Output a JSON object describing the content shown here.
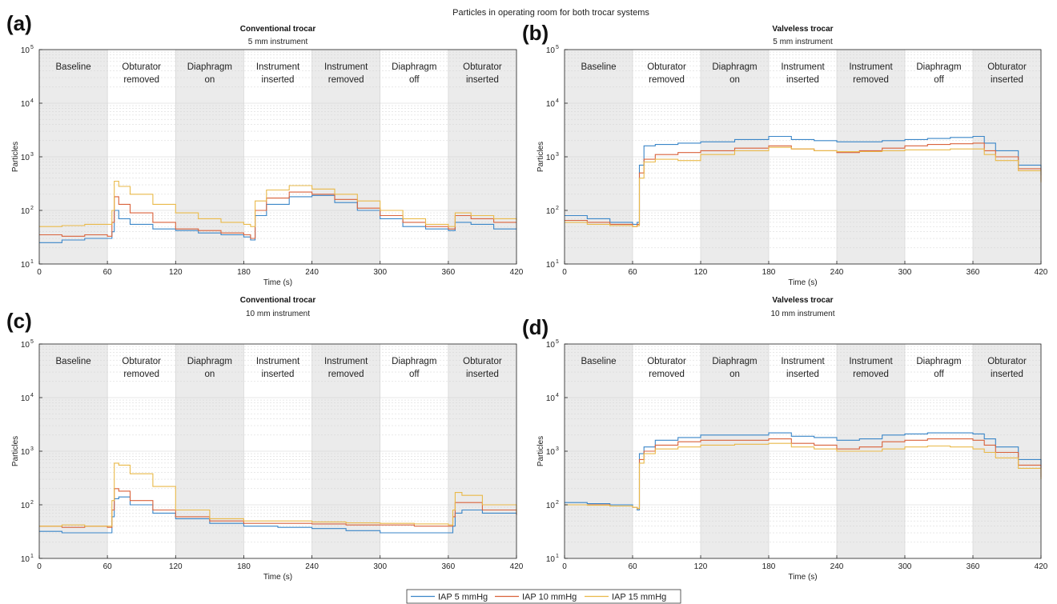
{
  "figure": {
    "suptitle": "Particles in operating room for both trocar systems"
  },
  "legend": {
    "entries": [
      {
        "label": "IAP 5 mmHg",
        "color": "#3a86c8"
      },
      {
        "label": "IAP 10 mmHg",
        "color": "#d9623b"
      },
      {
        "label": "IAP 15 mmHg",
        "color": "#e9b949"
      }
    ]
  },
  "chart_data": [
    {
      "panel": "(a)",
      "type": "line",
      "title": "Conventional trocar",
      "subtitle": "5 mm instrument",
      "xlabel": "Time (s)",
      "ylabel": "Particles",
      "xlim": [
        0,
        420
      ],
      "ylim": [
        10,
        100000
      ],
      "yscale": "log",
      "grid": true,
      "xticks": [
        0,
        60,
        120,
        180,
        240,
        300,
        360,
        420
      ],
      "yticks": [
        "10",
        "10",
        "10",
        "10",
        "10"
      ],
      "ytick_exponents": [
        "1",
        "2",
        "3",
        "4",
        "5"
      ],
      "phases": [
        {
          "line1": "Baseline",
          "line2": "",
          "shaded": true
        },
        {
          "line1": "Obturator",
          "line2": "removed",
          "shaded": false
        },
        {
          "line1": "Diaphragm",
          "line2": "on",
          "shaded": true
        },
        {
          "line1": "Instrument",
          "line2": "inserted",
          "shaded": false
        },
        {
          "line1": "Instrument",
          "line2": "removed",
          "shaded": true
        },
        {
          "line1": "Diaphragm",
          "line2": "off",
          "shaded": false
        },
        {
          "line1": "Obturator",
          "line2": "inserted",
          "shaded": true
        }
      ],
      "series": [
        {
          "name": "IAP 5 mmHg",
          "color": "#3a86c8",
          "x": [
            0,
            20,
            40,
            60,
            64,
            66,
            70,
            80,
            100,
            120,
            140,
            160,
            180,
            186,
            190,
            200,
            220,
            240,
            260,
            280,
            300,
            320,
            340,
            360,
            366,
            380,
            400,
            420
          ],
          "y": [
            25,
            28,
            30,
            30,
            40,
            100,
            70,
            55,
            45,
            42,
            38,
            35,
            32,
            28,
            80,
            130,
            180,
            190,
            140,
            100,
            70,
            50,
            45,
            42,
            60,
            55,
            45,
            45
          ]
        },
        {
          "name": "IAP 10 mmHg",
          "color": "#d9623b",
          "x": [
            0,
            20,
            40,
            60,
            64,
            66,
            70,
            80,
            100,
            120,
            140,
            160,
            180,
            186,
            190,
            200,
            220,
            240,
            260,
            280,
            300,
            320,
            340,
            360,
            366,
            380,
            400,
            420
          ],
          "y": [
            35,
            33,
            35,
            33,
            60,
            180,
            130,
            90,
            60,
            45,
            42,
            38,
            35,
            30,
            100,
            170,
            220,
            200,
            160,
            110,
            80,
            60,
            50,
            45,
            80,
            70,
            60,
            60
          ]
        },
        {
          "name": "IAP 15 mmHg",
          "color": "#e9b949",
          "x": [
            0,
            20,
            40,
            60,
            64,
            66,
            70,
            80,
            100,
            120,
            140,
            160,
            180,
            186,
            190,
            200,
            220,
            240,
            260,
            280,
            300,
            320,
            340,
            360,
            366,
            380,
            400,
            420
          ],
          "y": [
            50,
            52,
            55,
            55,
            100,
            350,
            280,
            200,
            130,
            90,
            70,
            60,
            55,
            50,
            150,
            240,
            290,
            250,
            200,
            150,
            100,
            70,
            55,
            50,
            90,
            80,
            70,
            65
          ]
        }
      ]
    },
    {
      "panel": "(b)",
      "type": "line",
      "title": "Valveless trocar",
      "subtitle": "5 mm instrument",
      "xlabel": "Time (s)",
      "ylabel": "Particles",
      "xlim": [
        0,
        420
      ],
      "ylim": [
        10,
        100000
      ],
      "yscale": "log",
      "grid": true,
      "xticks": [
        0,
        60,
        120,
        180,
        240,
        300,
        360,
        420
      ],
      "yticks": [
        "10",
        "10",
        "10",
        "10",
        "10"
      ],
      "ytick_exponents": [
        "1",
        "2",
        "3",
        "4",
        "5"
      ],
      "phases": [
        {
          "line1": "Baseline",
          "line2": "",
          "shaded": true
        },
        {
          "line1": "Obturator",
          "line2": "removed",
          "shaded": false
        },
        {
          "line1": "Diaphragm",
          "line2": "on",
          "shaded": true
        },
        {
          "line1": "Instrument",
          "line2": "inserted",
          "shaded": false
        },
        {
          "line1": "Instrument",
          "line2": "removed",
          "shaded": true
        },
        {
          "line1": "Diaphragm",
          "line2": "off",
          "shaded": false
        },
        {
          "line1": "Obturator",
          "line2": "inserted",
          "shaded": true
        }
      ],
      "series": [
        {
          "name": "IAP 5 mmHg",
          "color": "#3a86c8",
          "x": [
            0,
            20,
            40,
            60,
            64,
            66,
            70,
            80,
            100,
            120,
            150,
            180,
            200,
            220,
            240,
            260,
            280,
            300,
            320,
            340,
            360,
            370,
            380,
            400,
            420
          ],
          "y": [
            80,
            70,
            60,
            55,
            60,
            700,
            1600,
            1700,
            1800,
            1900,
            2100,
            2400,
            2100,
            2000,
            1900,
            1900,
            2000,
            2100,
            2200,
            2300,
            2400,
            1800,
            1300,
            700,
            450
          ]
        },
        {
          "name": "IAP 10 mmHg",
          "color": "#d9623b",
          "x": [
            0,
            20,
            40,
            60,
            64,
            66,
            70,
            80,
            100,
            120,
            150,
            180,
            200,
            220,
            240,
            260,
            280,
            300,
            320,
            340,
            360,
            370,
            380,
            400,
            420
          ],
          "y": [
            65,
            60,
            55,
            50,
            55,
            500,
            900,
            1100,
            1200,
            1300,
            1450,
            1600,
            1400,
            1300,
            1200,
            1300,
            1450,
            1600,
            1700,
            1750,
            1800,
            1300,
            1000,
            600,
            350
          ]
        },
        {
          "name": "IAP 15 mmHg",
          "color": "#e9b949",
          "x": [
            0,
            20,
            40,
            60,
            64,
            66,
            70,
            80,
            100,
            120,
            150,
            180,
            200,
            220,
            240,
            260,
            280,
            300,
            320,
            340,
            360,
            370,
            380,
            400,
            420
          ],
          "y": [
            60,
            55,
            52,
            50,
            52,
            400,
            800,
            900,
            850,
            1100,
            1300,
            1500,
            1400,
            1300,
            1250,
            1250,
            1300,
            1350,
            1350,
            1400,
            1400,
            1100,
            850,
            550,
            330
          ]
        }
      ]
    },
    {
      "panel": "(c)",
      "type": "line",
      "title": "Conventional trocar",
      "subtitle": "10 mm instrument",
      "xlabel": "Time (s)",
      "ylabel": "Particles",
      "xlim": [
        0,
        420
      ],
      "ylim": [
        10,
        100000
      ],
      "yscale": "log",
      "grid": true,
      "xticks": [
        0,
        60,
        120,
        180,
        240,
        300,
        360,
        420
      ],
      "yticks": [
        "10",
        "10",
        "10",
        "10",
        "10"
      ],
      "ytick_exponents": [
        "1",
        "2",
        "3",
        "4",
        "5"
      ],
      "phases": [
        {
          "line1": "Baseline",
          "line2": "",
          "shaded": true
        },
        {
          "line1": "Obturator",
          "line2": "removed",
          "shaded": false
        },
        {
          "line1": "Diaphragm",
          "line2": "on",
          "shaded": true
        },
        {
          "line1": "Instrument",
          "line2": "inserted",
          "shaded": false
        },
        {
          "line1": "Instrument",
          "line2": "removed",
          "shaded": true
        },
        {
          "line1": "Diaphragm",
          "line2": "off",
          "shaded": false
        },
        {
          "line1": "Obturator",
          "line2": "inserted",
          "shaded": true
        }
      ],
      "series": [
        {
          "name": "IAP 5 mmHg",
          "color": "#3a86c8",
          "x": [
            0,
            20,
            40,
            60,
            64,
            66,
            70,
            80,
            100,
            120,
            150,
            180,
            210,
            240,
            270,
            300,
            330,
            360,
            364,
            366,
            372,
            390,
            420
          ],
          "y": [
            32,
            30,
            30,
            30,
            60,
            130,
            140,
            100,
            70,
            55,
            45,
            40,
            38,
            36,
            33,
            30,
            30,
            30,
            40,
            70,
            80,
            70,
            65
          ]
        },
        {
          "name": "IAP 10 mmHg",
          "color": "#d9623b",
          "x": [
            0,
            20,
            40,
            60,
            64,
            66,
            70,
            80,
            100,
            120,
            150,
            180,
            210,
            240,
            270,
            300,
            330,
            360,
            364,
            366,
            372,
            390,
            420
          ],
          "y": [
            40,
            38,
            40,
            38,
            80,
            200,
            180,
            120,
            80,
            60,
            50,
            45,
            45,
            44,
            42,
            42,
            40,
            40,
            60,
            110,
            110,
            80,
            65
          ]
        },
        {
          "name": "IAP 15 mmHg",
          "color": "#e9b949",
          "x": [
            0,
            20,
            40,
            60,
            64,
            66,
            70,
            80,
            100,
            120,
            150,
            180,
            210,
            240,
            270,
            300,
            330,
            360,
            364,
            366,
            372,
            390,
            420
          ],
          "y": [
            40,
            42,
            40,
            40,
            120,
            600,
            550,
            380,
            220,
            80,
            55,
            50,
            50,
            48,
            46,
            45,
            44,
            42,
            80,
            170,
            150,
            100,
            70
          ]
        }
      ]
    },
    {
      "panel": "(d)",
      "type": "line",
      "title": "Valveless trocar",
      "subtitle": "10 mm instrument",
      "xlabel": "Time (s)",
      "ylabel": "Particles",
      "xlim": [
        0,
        420
      ],
      "ylim": [
        10,
        100000
      ],
      "yscale": "log",
      "grid": true,
      "xticks": [
        0,
        60,
        120,
        180,
        240,
        300,
        360,
        420
      ],
      "yticks": [
        "10",
        "10",
        "10",
        "10",
        "10"
      ],
      "ytick_exponents": [
        "1",
        "2",
        "3",
        "4",
        "5"
      ],
      "phases": [
        {
          "line1": "Baseline",
          "line2": "",
          "shaded": true
        },
        {
          "line1": "Obturator",
          "line2": "removed",
          "shaded": false
        },
        {
          "line1": "Diaphragm",
          "line2": "on",
          "shaded": true
        },
        {
          "line1": "Instrument",
          "line2": "inserted",
          "shaded": false
        },
        {
          "line1": "Instrument",
          "line2": "removed",
          "shaded": true
        },
        {
          "line1": "Diaphragm",
          "line2": "off",
          "shaded": false
        },
        {
          "line1": "Obturator",
          "line2": "inserted",
          "shaded": true
        }
      ],
      "series": [
        {
          "name": "IAP 5 mmHg",
          "color": "#3a86c8",
          "x": [
            0,
            20,
            40,
            60,
            64,
            66,
            70,
            80,
            100,
            120,
            150,
            180,
            200,
            220,
            240,
            260,
            280,
            300,
            320,
            340,
            360,
            370,
            380,
            400,
            420
          ],
          "y": [
            110,
            105,
            100,
            90,
            80,
            900,
            1200,
            1600,
            1800,
            2000,
            2000,
            2200,
            1900,
            1800,
            1600,
            1700,
            2000,
            2100,
            2200,
            2200,
            2100,
            1700,
            1200,
            700,
            480
          ]
        },
        {
          "name": "IAP 10 mmHg",
          "color": "#d9623b",
          "x": [
            0,
            20,
            40,
            60,
            64,
            66,
            70,
            80,
            100,
            120,
            150,
            180,
            200,
            220,
            240,
            260,
            280,
            300,
            320,
            340,
            360,
            370,
            380,
            400,
            420
          ],
          "y": [
            100,
            100,
            95,
            90,
            85,
            700,
            1000,
            1300,
            1500,
            1600,
            1600,
            1700,
            1400,
            1300,
            1100,
            1200,
            1500,
            1600,
            1700,
            1700,
            1600,
            1300,
            950,
            550,
            330
          ]
        },
        {
          "name": "IAP 15 mmHg",
          "color": "#e9b949",
          "x": [
            0,
            20,
            40,
            60,
            64,
            66,
            70,
            80,
            100,
            120,
            150,
            180,
            200,
            220,
            240,
            260,
            280,
            300,
            320,
            340,
            360,
            370,
            380,
            400,
            420
          ],
          "y": [
            100,
            98,
            95,
            90,
            85,
            600,
            900,
            1100,
            1200,
            1300,
            1350,
            1400,
            1200,
            1100,
            1000,
            1000,
            1100,
            1200,
            1250,
            1200,
            1100,
            950,
            750,
            480,
            300
          ]
        }
      ]
    }
  ]
}
